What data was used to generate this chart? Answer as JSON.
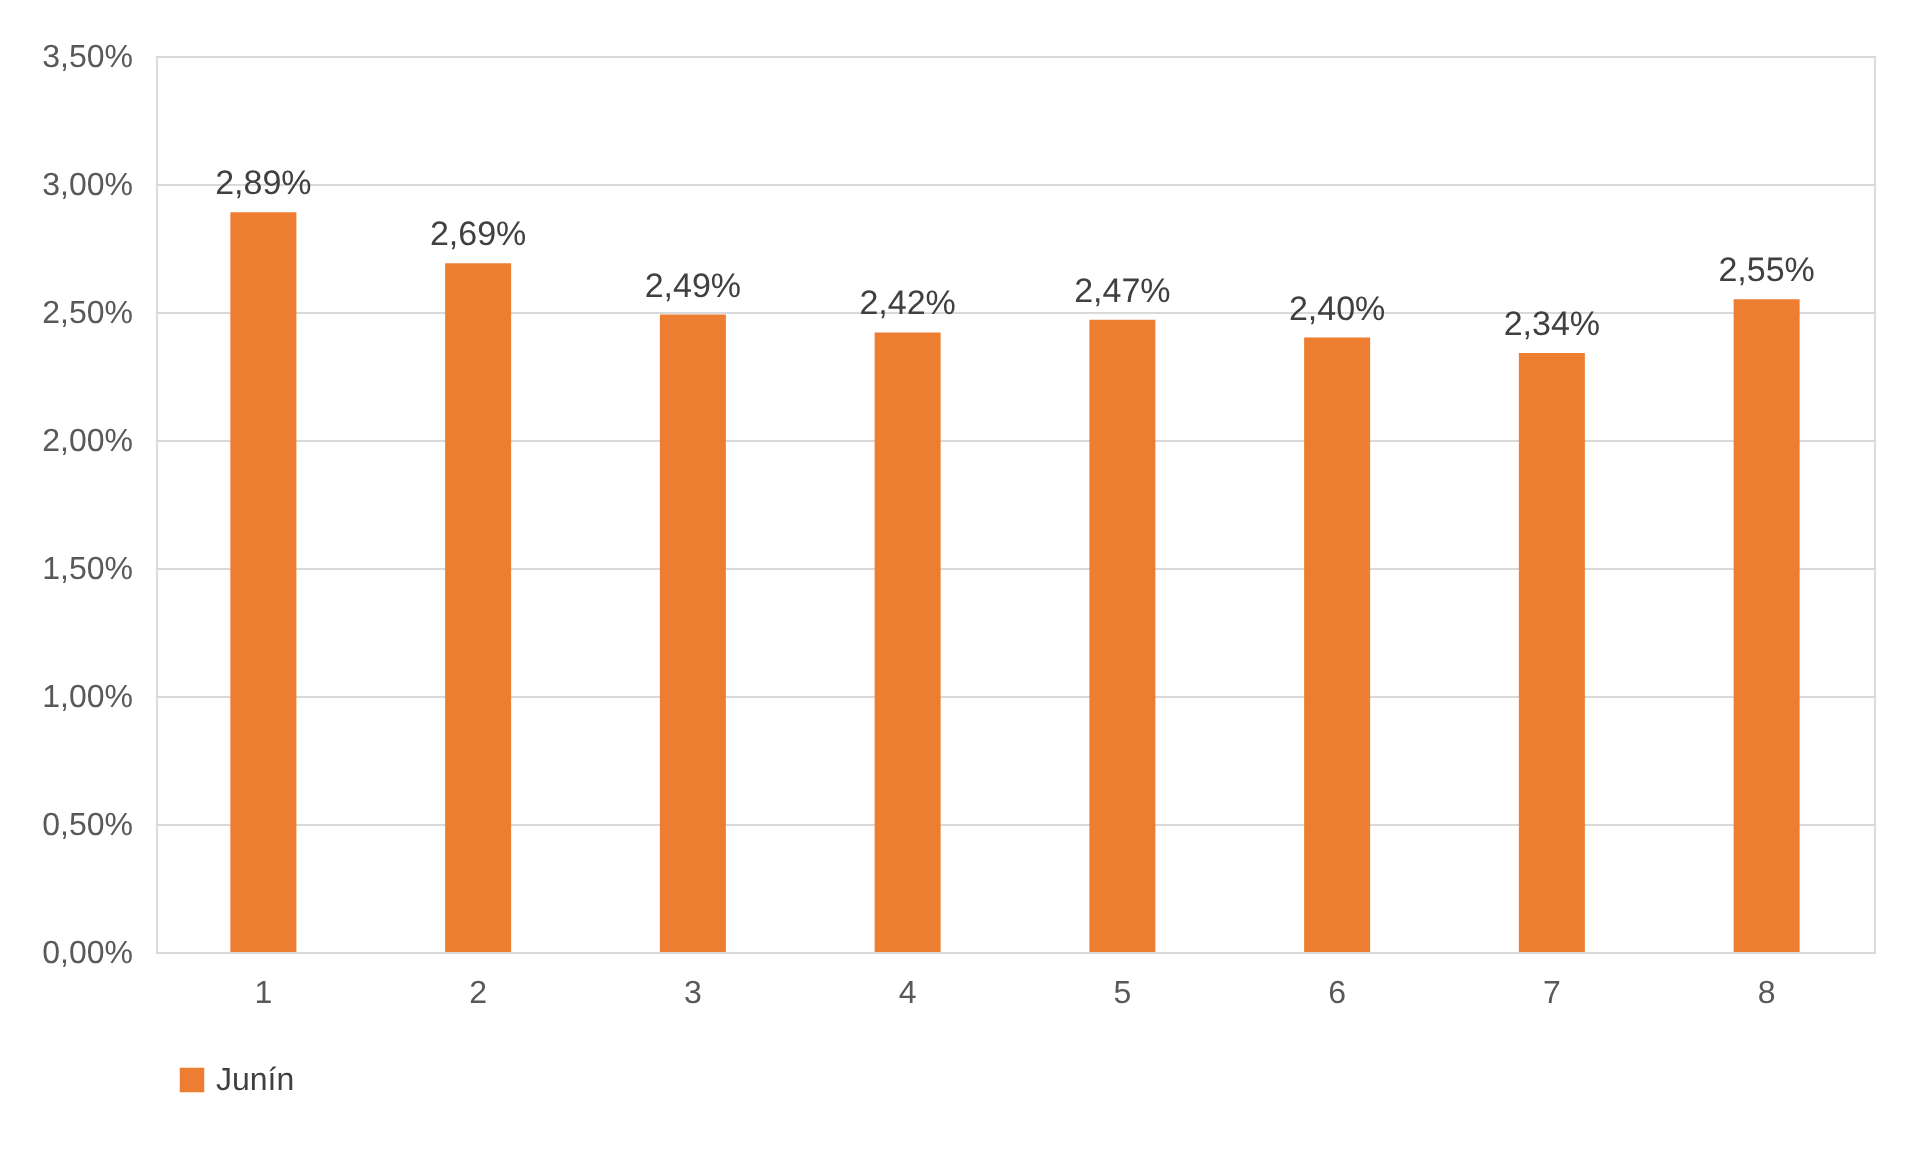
{
  "chart_data": {
    "type": "bar",
    "categories": [
      "1",
      "2",
      "3",
      "4",
      "5",
      "6",
      "7",
      "8"
    ],
    "series": [
      {
        "name": "Junín",
        "color": "#ed7d31",
        "values": [
          2.89,
          2.69,
          2.49,
          2.42,
          2.47,
          2.4,
          2.34,
          2.55
        ],
        "value_labels": [
          "2,89%",
          "2,69%",
          "2,49%",
          "2,42%",
          "2,47%",
          "2,40%",
          "2,34%",
          "2,55%"
        ]
      }
    ],
    "ylim": [
      0,
      3.5
    ],
    "yticks": [
      {
        "value": 0,
        "label": "0,00%"
      },
      {
        "value": 0.5,
        "label": "0,50%"
      },
      {
        "value": 1,
        "label": "1,00%"
      },
      {
        "value": 1.5,
        "label": "1,50%"
      },
      {
        "value": 2,
        "label": "2,00%"
      },
      {
        "value": 2.5,
        "label": "2,50%"
      },
      {
        "value": 3,
        "label": "3,00%"
      },
      {
        "value": 3.5,
        "label": "3,50%"
      }
    ],
    "grid": "y",
    "legend": "bottom"
  }
}
